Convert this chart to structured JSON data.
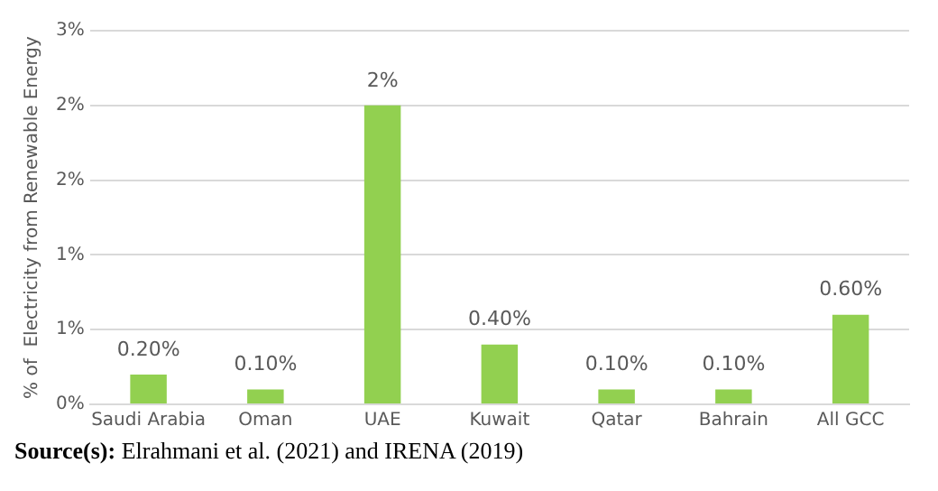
{
  "chart_data": {
    "type": "bar",
    "ylabel": "% of  Electricity from Renewable Energy",
    "categories": [
      "Saudi Arabia",
      "Oman",
      "UAE",
      "Kuwait",
      "Qatar",
      "Bahrain",
      "All GCC"
    ],
    "values": [
      0.2,
      0.1,
      2,
      0.4,
      0.1,
      0.1,
      0.6
    ],
    "value_labels": [
      "0.20%",
      "0.10%",
      "2%",
      "0.40%",
      "0.10%",
      "0.10%",
      "0.60%"
    ],
    "color": "#92d050",
    "ylim": [
      0,
      2.5
    ],
    "yticks": [
      {
        "value": 0,
        "label": "0%"
      },
      {
        "value": 0.5,
        "label": "1%"
      },
      {
        "value": 1,
        "label": "1%"
      },
      {
        "value": 1.5,
        "label": "2%"
      },
      {
        "value": 2,
        "label": "2%"
      },
      {
        "value": 2.5,
        "label": "3%"
      }
    ],
    "grid": "y",
    "annotations": [
      "Source(s): Elrahmani et al. (2021) and IRENA (2019)"
    ]
  }
}
